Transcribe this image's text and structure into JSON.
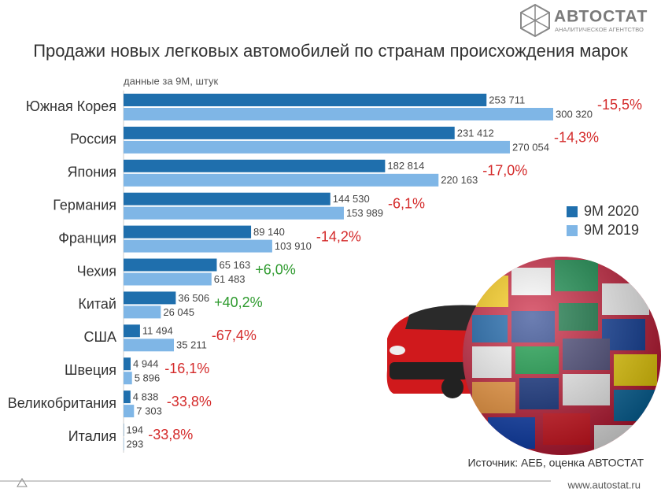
{
  "chart_data": {
    "type": "bar",
    "orientation": "horizontal",
    "title": "Продажи новых легковых автомобилей по странам происхождения марок",
    "subtitle": "данные за 9М, штук",
    "logo": "АВТОСТАТ",
    "logo_tagline": "АНАЛИТИЧЕСКОЕ АГЕНТСТВО",
    "source": "Источник: АЕБ, оценка АВТОСТАТ",
    "website": "www.autostat.ru",
    "categories": [
      "Южная Корея",
      "Россия",
      "Япония",
      "Германия",
      "Франция",
      "Чехия",
      "Китай",
      "США",
      "Швеция",
      "Великобритания",
      "Италия"
    ],
    "series": [
      {
        "name": "9М 2020",
        "color": "#1f6fad",
        "values": [
          253711,
          231412,
          182814,
          144530,
          89140,
          65163,
          36506,
          11494,
          4944,
          4838,
          194
        ],
        "value_labels": [
          "253 711",
          "231 412",
          "182 814",
          "144 530",
          "89 140",
          "65 163",
          "36 506",
          "11 494",
          "4 944",
          "4 838",
          "194"
        ]
      },
      {
        "name": "9М 2019",
        "color": "#7fb6e6",
        "values": [
          300320,
          270054,
          220163,
          153989,
          103910,
          61483,
          26045,
          35211,
          5896,
          7303,
          293
        ],
        "value_labels": [
          "300 320",
          "270 054",
          "220 163",
          "153 989",
          "103 910",
          "61 483",
          "26 045",
          "35 211",
          "5 896",
          "7 303",
          "293"
        ]
      }
    ],
    "changes": [
      {
        "value": -15.5,
        "label": "-15,5%"
      },
      {
        "value": -14.3,
        "label": "-14,3%"
      },
      {
        "value": -17.0,
        "label": "-17,0%"
      },
      {
        "value": -6.1,
        "label": "-6,1%"
      },
      {
        "value": -14.2,
        "label": "-14,2%"
      },
      {
        "value": 6.0,
        "label": "+6,0%"
      },
      {
        "value": 40.2,
        "label": "+40,2%"
      },
      {
        "value": -67.4,
        "label": "-67,4%"
      },
      {
        "value": -16.1,
        "label": "-16,1%"
      },
      {
        "value": -33.8,
        "label": "-33,8%"
      },
      {
        "value": -33.8,
        "label": "-33,8%"
      }
    ],
    "positive_color": "#2e9a2e",
    "negative_color": "#d42a2a",
    "legend": "right"
  }
}
